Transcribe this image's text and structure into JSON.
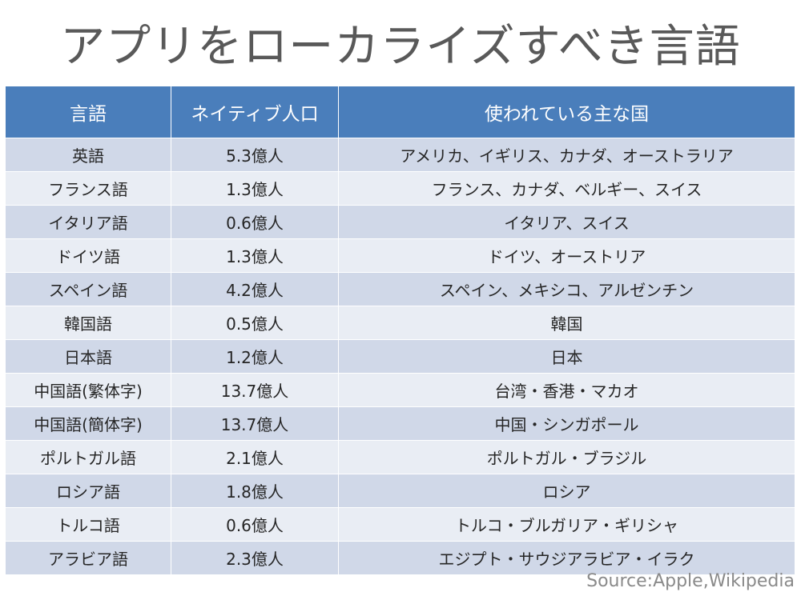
{
  "title": "アプリをローカライズすべき言語",
  "table": {
    "headers": [
      "言語",
      "ネイティブ人口",
      "使われている主な国"
    ],
    "rows": [
      [
        "英語",
        "5.3億人",
        "アメリカ、イギリス、カナダ、オーストラリア"
      ],
      [
        "フランス語",
        "1.3億人",
        "フランス、カナダ、ベルギー、スイス"
      ],
      [
        "イタリア語",
        "0.6億人",
        "イタリア、スイス"
      ],
      [
        "ドイツ語",
        "1.3億人",
        "ドイツ、オーストリア"
      ],
      [
        "スペイン語",
        "4.2億人",
        "スペイン、メキシコ、アルゼンチン"
      ],
      [
        "韓国語",
        "0.5億人",
        "韓国"
      ],
      [
        "日本語",
        "1.2億人",
        "日本"
      ],
      [
        "中国語(繁体字)",
        "13.7億人",
        "台湾・香港・マカオ"
      ],
      [
        "中国語(簡体字)",
        "13.7億人",
        "中国・シンガポール"
      ],
      [
        "ポルトガル語",
        "2.1億人",
        "ポルトガル・ブラジル"
      ],
      [
        "ロシア語",
        "1.8億人",
        "ロシア"
      ],
      [
        "トルコ語",
        "0.6億人",
        "トルコ・ブルガリア・ギリシャ"
      ],
      [
        "アラビア語",
        "2.3億人",
        "エジプト・サウジアラビア・イラク"
      ]
    ]
  },
  "source": "Source:Apple,Wikipedia",
  "colors": {
    "header_bg": "#4a7ebb",
    "row_odd_bg": "#d0d8e8",
    "row_even_bg": "#e9edf4",
    "title_text": "#595959"
  }
}
